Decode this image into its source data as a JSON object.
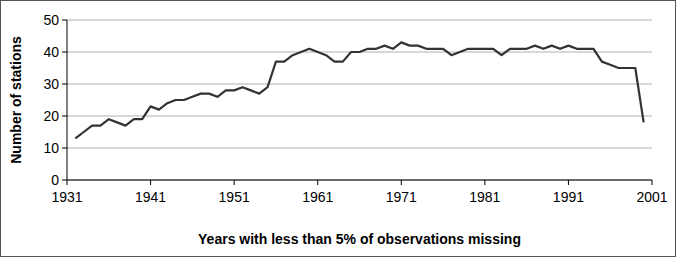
{
  "chart_data": {
    "type": "line",
    "x_label": "Years with less than 5% of observations missing",
    "y_label": "Number of stations",
    "x": [
      1932,
      1933,
      1934,
      1935,
      1936,
      1937,
      1938,
      1939,
      1940,
      1941,
      1942,
      1943,
      1944,
      1945,
      1946,
      1947,
      1948,
      1949,
      1950,
      1951,
      1952,
      1953,
      1954,
      1955,
      1956,
      1957,
      1958,
      1959,
      1960,
      1961,
      1962,
      1963,
      1964,
      1965,
      1966,
      1967,
      1968,
      1969,
      1970,
      1971,
      1972,
      1973,
      1974,
      1975,
      1976,
      1977,
      1978,
      1979,
      1980,
      1981,
      1982,
      1983,
      1984,
      1985,
      1986,
      1987,
      1988,
      1989,
      1990,
      1991,
      1992,
      1993,
      1994,
      1995,
      1996,
      1997,
      1998,
      1999,
      2000
    ],
    "values": [
      13,
      15,
      17,
      17,
      19,
      18,
      17,
      19,
      19,
      23,
      22,
      24,
      25,
      25,
      26,
      27,
      27,
      26,
      28,
      28,
      29,
      28,
      27,
      29,
      37,
      37,
      39,
      40,
      41,
      40,
      39,
      37,
      37,
      40,
      40,
      41,
      41,
      42,
      41,
      43,
      42,
      42,
      41,
      41,
      41,
      39,
      40,
      41,
      41,
      41,
      41,
      39,
      41,
      41,
      41,
      42,
      41,
      42,
      41,
      42,
      41,
      41,
      41,
      37,
      36,
      35,
      35,
      35,
      18
    ],
    "color": "#333333",
    "xlim": [
      1931,
      2001
    ],
    "xticks": [
      1931,
      1941,
      1951,
      1961,
      1971,
      1981,
      1991,
      2001
    ],
    "ylim": [
      0,
      50
    ],
    "yticks": [
      0,
      10,
      20,
      30,
      40,
      50
    ],
    "grid": true
  }
}
